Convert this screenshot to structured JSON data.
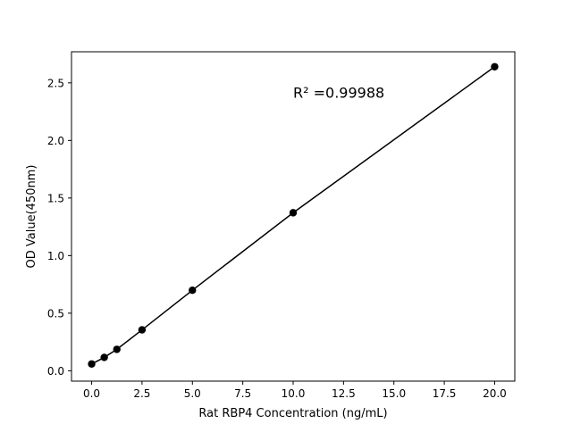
{
  "chart_data": {
    "type": "line",
    "title": "",
    "xlabel": "Rat RBP4 Concentration (ng/mL)",
    "ylabel": "OD Value(450nm)",
    "xlim": [
      -1,
      21
    ],
    "ylim": [
      -0.09,
      2.77
    ],
    "xticks": [
      "0.0",
      "2.5",
      "5.0",
      "7.5",
      "10.0",
      "12.5",
      "15.0",
      "17.5",
      "20.0"
    ],
    "yticks": [
      "0.0",
      "0.5",
      "1.0",
      "1.5",
      "2.0",
      "2.5"
    ],
    "grid": false,
    "series": [
      {
        "x": [
          0,
          0.625,
          1.25,
          2.5,
          5,
          10,
          20
        ],
        "y": [
          0.059,
          0.116,
          0.186,
          0.355,
          0.699,
          1.372,
          2.64
        ],
        "color": "#000000",
        "marker": "circle"
      }
    ],
    "annotations": [
      {
        "text": "R² =0.99988",
        "x": 10,
        "y": 2.37
      }
    ]
  }
}
